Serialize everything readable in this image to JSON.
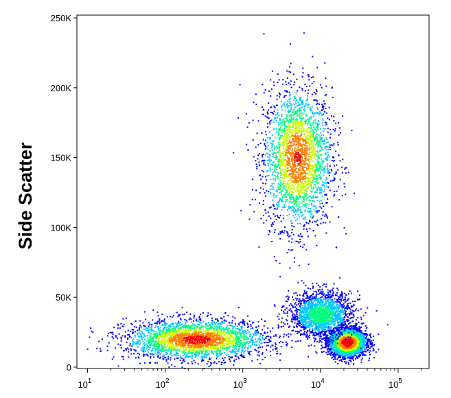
{
  "chart_data": {
    "type": "scatter",
    "subtype": "flow-cytometry-density-plot",
    "title": "",
    "xlabel": "",
    "ylabel": "Side Scatter",
    "xscale": "log",
    "xlim": [
      7.3,
      250000
    ],
    "ylim": [
      -1000,
      252000
    ],
    "yticks": [
      {
        "value": 0,
        "label": "0"
      },
      {
        "value": 50000,
        "label": "50K"
      },
      {
        "value": 100000,
        "label": "100K"
      },
      {
        "value": 150000,
        "label": "150K"
      },
      {
        "value": 200000,
        "label": "200K"
      },
      {
        "value": 250000,
        "label": "250K"
      }
    ],
    "xticks": [
      {
        "value": 10,
        "base": "10",
        "exp": "1"
      },
      {
        "value": 100,
        "base": "10",
        "exp": "2"
      },
      {
        "value": 1000,
        "base": "10",
        "exp": "3"
      },
      {
        "value": 10000,
        "base": "10",
        "exp": "4"
      },
      {
        "value": 100000,
        "base": "10",
        "exp": "5"
      }
    ],
    "grid": false,
    "colormap": [
      "#0000ff",
      "#00c8ff",
      "#00ff80",
      "#c8ff00",
      "#ff8000",
      "#ff0000"
    ],
    "populations": [
      {
        "x_center": 5000,
        "y_center": 150000,
        "x_spread_decades": 0.22,
        "y_sd": 25000,
        "peak_density": 0.85
      },
      {
        "x_center": 250,
        "y_center": 20000,
        "x_spread_decades": 0.45,
        "y_sd": 7000,
        "peak_density": 0.9
      },
      {
        "x_center": 22000,
        "y_center": 18000,
        "x_spread_decades": 0.12,
        "y_sd": 5000,
        "peak_density": 1.0
      },
      {
        "x_center": 10000,
        "y_center": 38000,
        "x_spread_decades": 0.2,
        "y_sd": 8000,
        "peak_density": 0.45
      }
    ]
  }
}
